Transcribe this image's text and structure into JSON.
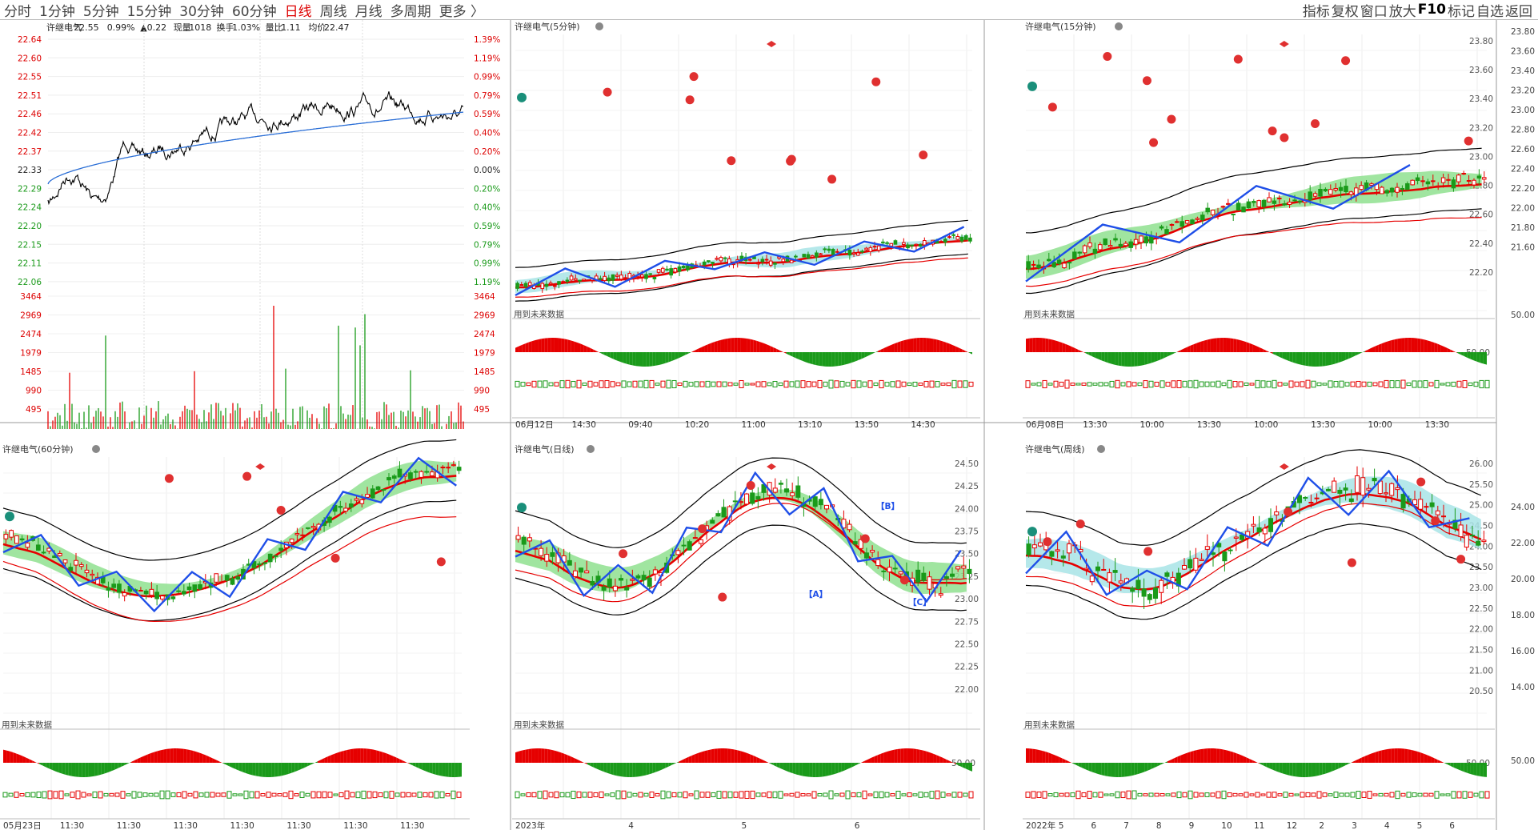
{
  "toolbar": {
    "periods": [
      "分时",
      "1分钟",
      "5分钟",
      "15分钟",
      "30分钟",
      "60分钟",
      "日线",
      "周线",
      "月线",
      "多周期",
      "更多 〉"
    ],
    "active": "日线",
    "right_items": [
      "指标",
      "复权",
      "窗口",
      "放大",
      "F10",
      "标记",
      "自选",
      "返回"
    ]
  },
  "colors": {
    "up": "#e60000",
    "down": "#1a9a1a",
    "ma_blue": "#1f4fe8",
    "band_cyan": "#a8e4e6",
    "band_green": "#8fe08f",
    "grid": "#d9d9d9",
    "bg": "#ffffff"
  },
  "panels": {
    "intraday": {
      "title": "许继电气",
      "price": "22.55",
      "pct": "0.99%",
      "chg": "▲0.22",
      "vol_label": "现量",
      "vol": "1018",
      "turn_label": "换手",
      "turn": "1.03%",
      "ratio_label": "量比",
      "ratio": "1.11",
      "avg_label": "均价",
      "avg": "22.47",
      "price_ticks": [
        "22.64",
        "22.60",
        "22.55",
        "22.51",
        "22.46",
        "22.42",
        "22.37",
        "22.33",
        "22.29",
        "22.24",
        "22.20",
        "22.15",
        "22.11",
        "22.06"
      ],
      "pct_ticks": [
        "1.39%",
        "1.19%",
        "0.99%",
        "0.79%",
        "0.59%",
        "0.40%",
        "0.20%",
        "0.00%",
        "0.20%",
        "0.40%",
        "0.59%",
        "0.79%",
        "0.99%",
        "1.19%"
      ],
      "vol_ticks": [
        "3464",
        "2969",
        "2474",
        "1979",
        "1485",
        "990",
        "495"
      ]
    },
    "p5": {
      "title": "许继电气(5分钟)",
      "y_ticks": [],
      "note": "用到未来数据",
      "x_labels": [
        "06月12日",
        "14:30",
        "09:40",
        "10:20",
        "11:00",
        "13:10",
        "13:50",
        "14:30"
      ]
    },
    "p15": {
      "title": "许继电气(15分钟)",
      "y_ticks": [
        "23.80",
        "23.60",
        "23.40",
        "23.20",
        "23.00",
        "22.80",
        "22.60",
        "22.40",
        "22.20"
      ],
      "mid_tick": "50.00",
      "note": "用到未来数据",
      "x_labels": [
        "06月08日",
        "13:30",
        "10:00",
        "13:30",
        "10:00",
        "13:30",
        "10:00",
        "13:30"
      ]
    },
    "p60": {
      "title": "许继电气(60分钟)",
      "note": "用到未来数据",
      "x_labels": [
        "05月23日",
        "11:30",
        "11:30",
        "11:30",
        "11:30",
        "11:30",
        "11:30",
        "11:30"
      ]
    },
    "pday": {
      "title": "许继电气(日线)",
      "y_ticks": [
        "24.50",
        "24.25",
        "24.00",
        "23.75",
        "23.50",
        "23.25",
        "23.00",
        "22.75",
        "22.50",
        "22.25",
        "22.00"
      ],
      "mid_tick": "50.00",
      "note": "用到未来数据",
      "wave_labels": [
        "【B】",
        "【A】",
        "【C】"
      ],
      "x_labels": [
        "2023年",
        "4",
        "5",
        "6"
      ]
    },
    "pweek": {
      "title": "许继电气(周线)",
      "y_ticks": [
        "26.00",
        "25.50",
        "25.00",
        "24.50",
        "24.00",
        "23.50",
        "23.00",
        "22.50",
        "22.00",
        "21.50",
        "21.00",
        "20.50"
      ],
      "mid_tick": "50.00",
      "note": "用到未来数据",
      "x_labels": [
        "2022年",
        "5",
        "6",
        "7",
        "8",
        "9",
        "10",
        "11",
        "12",
        "2",
        "3",
        "4",
        "5",
        "6"
      ]
    }
  },
  "right_axis": {
    "upper": [
      "23.80",
      "23.60",
      "23.40",
      "23.20",
      "23.00",
      "22.80",
      "22.60",
      "22.40",
      "22.20",
      "22.00",
      "21.80",
      "21.60"
    ],
    "upper_mid": "50.00",
    "lower": [
      "24.00",
      "22.00",
      "20.00",
      "18.00",
      "16.00",
      "14.00"
    ],
    "lower_mid": "50.00"
  }
}
